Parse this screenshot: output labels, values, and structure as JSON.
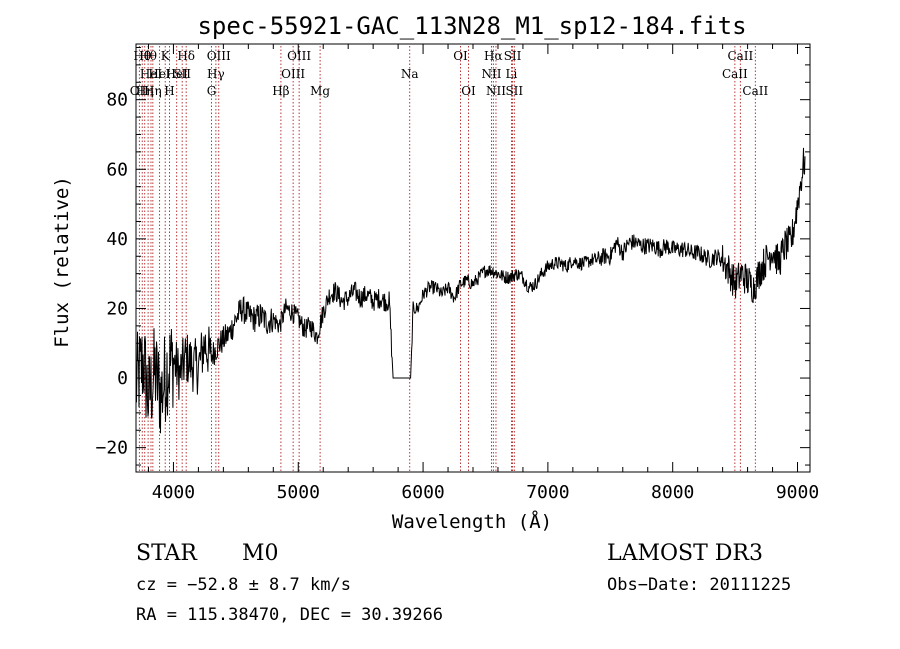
{
  "chart_data": {
    "type": "line",
    "title": "spec-55921-GAC_113N28_M1_sp12-184.fits",
    "xlabel": "Wavelength (Å)",
    "ylabel": "Flux (relative)",
    "xlim": [
      3700,
      9100
    ],
    "ylim": [
      -27,
      96
    ],
    "xticks": [
      4000,
      5000,
      6000,
      7000,
      8000,
      9000
    ],
    "yticks": [
      -20,
      0,
      20,
      40,
      60,
      80
    ],
    "grid": false,
    "spectrum_points": [
      [
        3700,
        -2
      ],
      [
        3760,
        5
      ],
      [
        3800,
        -6
      ],
      [
        3850,
        2
      ],
      [
        3900,
        -5
      ],
      [
        3950,
        3
      ],
      [
        4000,
        5
      ],
      [
        4050,
        1
      ],
      [
        4100,
        6
      ],
      [
        4150,
        4
      ],
      [
        4200,
        3
      ],
      [
        4250,
        10
      ],
      [
        4300,
        6
      ],
      [
        4350,
        9
      ],
      [
        4400,
        11
      ],
      [
        4450,
        13
      ],
      [
        4500,
        17
      ],
      [
        4550,
        20
      ],
      [
        4600,
        18
      ],
      [
        4650,
        17
      ],
      [
        4700,
        18
      ],
      [
        4750,
        16
      ],
      [
        4800,
        17
      ],
      [
        4850,
        15
      ],
      [
        4900,
        20
      ],
      [
        4950,
        19
      ],
      [
        5000,
        17
      ],
      [
        5050,
        14
      ],
      [
        5100,
        15
      ],
      [
        5150,
        12
      ],
      [
        5200,
        19
      ],
      [
        5250,
        24
      ],
      [
        5300,
        25
      ],
      [
        5350,
        22
      ],
      [
        5400,
        23
      ],
      [
        5450,
        25
      ],
      [
        5500,
        23
      ],
      [
        5550,
        24
      ],
      [
        5600,
        22
      ],
      [
        5650,
        23
      ],
      [
        5700,
        22
      ],
      [
        5730,
        22
      ],
      [
        5760,
        0
      ],
      [
        5800,
        0
      ],
      [
        5860,
        0
      ],
      [
        5900,
        0
      ],
      [
        5920,
        20
      ],
      [
        5960,
        20
      ],
      [
        6000,
        24
      ],
      [
        6050,
        26
      ],
      [
        6100,
        26
      ],
      [
        6150,
        24
      ],
      [
        6200,
        26
      ],
      [
        6250,
        23
      ],
      [
        6300,
        27
      ],
      [
        6350,
        28
      ],
      [
        6400,
        27
      ],
      [
        6450,
        29
      ],
      [
        6500,
        31
      ],
      [
        6550,
        31
      ],
      [
        6600,
        30
      ],
      [
        6650,
        29
      ],
      [
        6700,
        29
      ],
      [
        6750,
        30
      ],
      [
        6800,
        29
      ],
      [
        6850,
        26
      ],
      [
        6900,
        27
      ],
      [
        6950,
        30
      ],
      [
        7000,
        32
      ],
      [
        7050,
        33
      ],
      [
        7100,
        33
      ],
      [
        7150,
        32
      ],
      [
        7200,
        34
      ],
      [
        7250,
        33
      ],
      [
        7300,
        33
      ],
      [
        7350,
        34
      ],
      [
        7400,
        34
      ],
      [
        7450,
        35
      ],
      [
        7500,
        35
      ],
      [
        7550,
        39
      ],
      [
        7600,
        36
      ],
      [
        7650,
        39
      ],
      [
        7700,
        39
      ],
      [
        7750,
        38
      ],
      [
        7800,
        38
      ],
      [
        7850,
        38
      ],
      [
        7900,
        37
      ],
      [
        7950,
        38
      ],
      [
        8000,
        37
      ],
      [
        8050,
        37
      ],
      [
        8100,
        37
      ],
      [
        8150,
        36
      ],
      [
        8200,
        36
      ],
      [
        8250,
        35
      ],
      [
        8300,
        34
      ],
      [
        8350,
        35
      ],
      [
        8400,
        34
      ],
      [
        8450,
        31
      ],
      [
        8500,
        27
      ],
      [
        8550,
        30
      ],
      [
        8600,
        28
      ],
      [
        8650,
        26
      ],
      [
        8700,
        31
      ],
      [
        8750,
        34
      ],
      [
        8800,
        37
      ],
      [
        8850,
        33
      ],
      [
        8900,
        38
      ],
      [
        8950,
        39
      ],
      [
        9000,
        50
      ],
      [
        9050,
        62
      ]
    ],
    "line_markers": [
      {
        "wl": 3727,
        "label": "OII",
        "row": 2
      },
      {
        "wl": 3750,
        "label": "Hθ",
        "row": 0
      },
      {
        "wl": 3770,
        "label": "Hη",
        "row": 2
      },
      {
        "wl": 3797,
        "label": "Hθ",
        "row": 0
      },
      {
        "wl": 3820,
        "label": "HeI",
        "row": 1
      },
      {
        "wl": 3835,
        "label": "Hη",
        "row": 2
      },
      {
        "wl": 3889,
        "label": "HeI",
        "row": 1
      },
      {
        "wl": 3934,
        "label": "K",
        "row": 0
      },
      {
        "wl": 3968,
        "label": "H",
        "row": 2
      },
      {
        "wl": 4026,
        "label": "HeI",
        "row": 1
      },
      {
        "wl": 4070,
        "label": "SII",
        "row": 1
      },
      {
        "wl": 4102,
        "label": "Hδ",
        "row": 0
      },
      {
        "wl": 4305,
        "label": "G",
        "row": 2
      },
      {
        "wl": 4340,
        "label": "Hγ",
        "row": 1
      },
      {
        "wl": 4363,
        "label": "OIII",
        "row": 0
      },
      {
        "wl": 4861,
        "label": "Hβ",
        "row": 2
      },
      {
        "wl": 4959,
        "label": "OIII",
        "row": 1
      },
      {
        "wl": 5007,
        "label": "OIII",
        "row": 0
      },
      {
        "wl": 5175,
        "label": "Mg",
        "row": 2
      },
      {
        "wl": 5893,
        "label": "Na",
        "row": 1
      },
      {
        "wl": 6300,
        "label": "OI",
        "row": 0
      },
      {
        "wl": 6364,
        "label": "OI",
        "row": 2
      },
      {
        "wl": 6548,
        "label": "NII",
        "row": 1
      },
      {
        "wl": 6563,
        "label": "Hα",
        "row": 0
      },
      {
        "wl": 6584,
        "label": "NII",
        "row": 2
      },
      {
        "wl": 6708,
        "label": "Li",
        "row": 1
      },
      {
        "wl": 6717,
        "label": "SII",
        "row": 0
      },
      {
        "wl": 6731,
        "label": "SII",
        "row": 2
      },
      {
        "wl": 8498,
        "label": "CaII",
        "row": 1
      },
      {
        "wl": 8542,
        "label": "CaII",
        "row": 0
      },
      {
        "wl": 8662,
        "label": "CaII",
        "row": 2
      }
    ]
  },
  "footer": {
    "object_class": "STAR",
    "subclass": "M0",
    "cz": "cz = −52.8 ± 8.7 km/s",
    "coords": "RA = 115.38470, DEC =  30.39266",
    "survey": "LAMOST DR3",
    "obs_date": "Obs−Date: 20111225"
  }
}
